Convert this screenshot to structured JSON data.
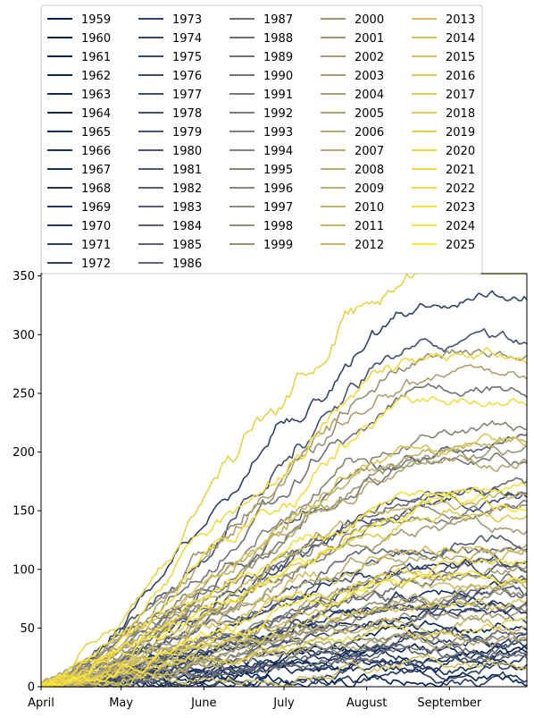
{
  "chart_data": {
    "type": "line",
    "title": "",
    "xlabel": "",
    "ylabel": "",
    "x_ticks": [
      "April",
      "May",
      "June",
      "July",
      "August",
      "September"
    ],
    "y_ticks": [
      0,
      50,
      100,
      150,
      200,
      250,
      300,
      350
    ],
    "ylim": [
      0,
      352
    ],
    "x_domain_days": [
      0,
      182
    ],
    "x_tick_days": [
      0,
      30,
      61,
      91,
      122,
      153
    ],
    "grid": false,
    "legend": {
      "placement": "top",
      "columns": 5
    },
    "colormap": "cividis",
    "series_note": "67 yearly cumulative series from 1959 to 2025",
    "series": [
      {
        "name": "1959",
        "final": 30
      },
      {
        "name": "1960",
        "final": 10
      },
      {
        "name": "1961",
        "final": 45
      },
      {
        "name": "1962",
        "final": 20
      },
      {
        "name": "1963",
        "final": 60
      },
      {
        "name": "1964",
        "final": 15
      },
      {
        "name": "1965",
        "final": 80
      },
      {
        "name": "1966",
        "final": 25
      },
      {
        "name": "1967",
        "final": 40
      },
      {
        "name": "1968",
        "final": 5
      },
      {
        "name": "1969",
        "final": 100
      },
      {
        "name": "1970",
        "final": 35
      },
      {
        "name": "1971",
        "final": 65
      },
      {
        "name": "1972",
        "final": 12
      },
      {
        "name": "1973",
        "final": 305
      },
      {
        "name": "1974",
        "final": 55
      },
      {
        "name": "1975",
        "final": 140
      },
      {
        "name": "1976",
        "final": 90
      },
      {
        "name": "1977",
        "final": 20
      },
      {
        "name": "1978",
        "final": 255
      },
      {
        "name": "1979",
        "final": 160
      },
      {
        "name": "1980",
        "final": 75
      },
      {
        "name": "1981",
        "final": 120
      },
      {
        "name": "1982",
        "final": 45
      },
      {
        "name": "1983",
        "final": 195
      },
      {
        "name": "1984",
        "final": 30
      },
      {
        "name": "1985",
        "final": 110
      },
      {
        "name": "1986",
        "final": 70
      },
      {
        "name": "1987",
        "final": 150
      },
      {
        "name": "1988",
        "final": 85
      },
      {
        "name": "1989",
        "final": 230
      },
      {
        "name": "1990",
        "final": 25
      },
      {
        "name": "1991",
        "final": 175
      },
      {
        "name": "1992",
        "final": 60
      },
      {
        "name": "1993",
        "final": 130
      },
      {
        "name": "1994",
        "final": 95
      },
      {
        "name": "1995",
        "final": 210
      },
      {
        "name": "1996",
        "final": 40
      },
      {
        "name": "1997",
        "final": 145
      },
      {
        "name": "1998",
        "final": 70
      },
      {
        "name": "1999",
        "final": 265
      },
      {
        "name": "2000",
        "final": 185
      },
      {
        "name": "2001",
        "final": 55
      },
      {
        "name": "2002",
        "final": 125
      },
      {
        "name": "2003",
        "final": 90
      },
      {
        "name": "2004",
        "final": 240
      },
      {
        "name": "2005",
        "final": 35
      },
      {
        "name": "2006",
        "final": 170
      },
      {
        "name": "2007",
        "final": 105
      },
      {
        "name": "2008",
        "final": 75
      },
      {
        "name": "2009",
        "final": 200
      },
      {
        "name": "2010",
        "final": 50
      },
      {
        "name": "2011",
        "final": 155
      },
      {
        "name": "2012",
        "final": 80
      },
      {
        "name": "2013",
        "final": 115
      },
      {
        "name": "2014",
        "final": 20
      },
      {
        "name": "2015",
        "final": 190
      },
      {
        "name": "2016",
        "final": 65
      },
      {
        "name": "2017",
        "final": 135
      },
      {
        "name": "2018",
        "final": 45
      },
      {
        "name": "2019",
        "final": 328
      },
      {
        "name": "2020",
        "final": 95
      },
      {
        "name": "2021",
        "final": 250
      },
      {
        "name": "2022",
        "final": 215
      },
      {
        "name": "2023",
        "final": 165
      },
      {
        "name": "2024",
        "final": 150
      },
      {
        "name": "2025",
        "final": 85
      }
    ]
  }
}
